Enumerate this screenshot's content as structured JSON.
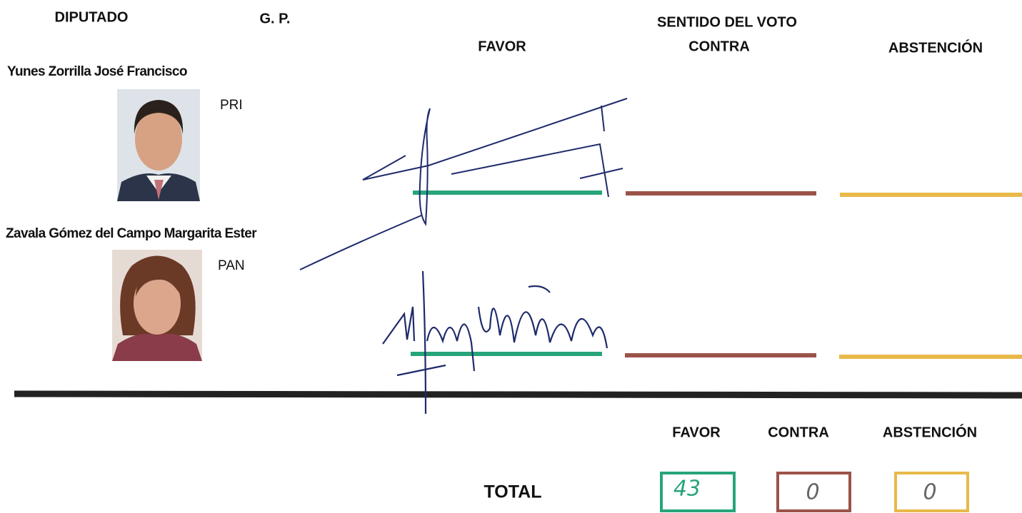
{
  "header": {
    "diputado": "DIPUTADO",
    "gp": "G. P.",
    "sentido": "SENTIDO DEL VOTO",
    "favor": "FAVOR",
    "contra": "CONTRA",
    "abstencion": "ABSTENCIÓN"
  },
  "rows": [
    {
      "name": "Yunes Zorrilla José Francisco",
      "party": "PRI"
    },
    {
      "name": "Zavala Gómez del Campo Margarita Ester",
      "party": "PAN"
    }
  ],
  "totals": {
    "label": "TOTAL",
    "columns": [
      "FAVOR",
      "CONTRA",
      "ABSTENCIÓN"
    ],
    "values": [
      43,
      0,
      0
    ]
  }
}
